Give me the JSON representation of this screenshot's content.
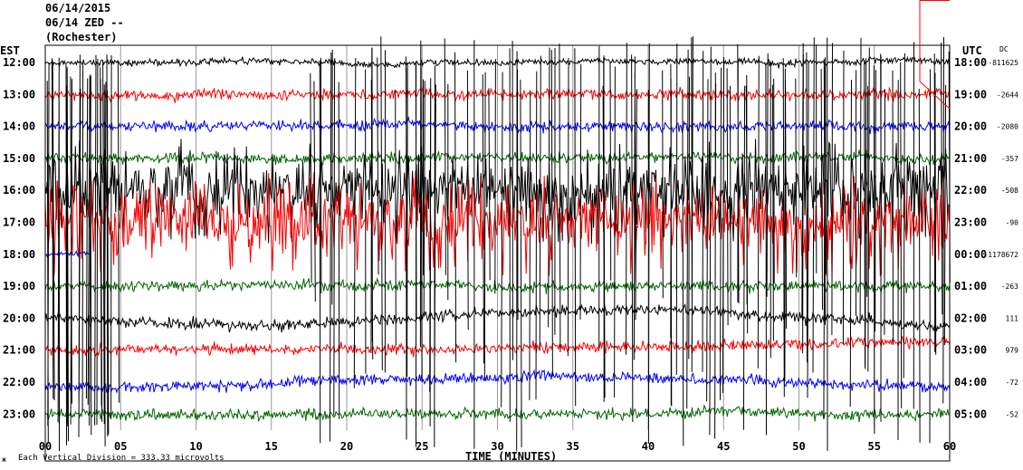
{
  "header": {
    "line1": "06/14/2015",
    "line2": "06/14 ZED --",
    "line3": "(Rochester)"
  },
  "footer": {
    "icon_glyph": "ж",
    "scale_note": "Each Vertical Division = 333.33 microvolts"
  },
  "chart_data": {
    "type": "line",
    "title": "",
    "xlabel": "TIME (MINUTES)",
    "ylabel_left": "EST",
    "ylabel_right": "UTC",
    "dc_label": "DC",
    "xlim": [
      0,
      60
    ],
    "x_ticks": [
      "00",
      "05",
      "10",
      "15",
      "20",
      "25",
      "30",
      "35",
      "40",
      "45",
      "50",
      "55",
      "60"
    ],
    "grid": "vertical lines every 5 minutes",
    "rows": [
      {
        "est": "12:00",
        "utc": "18:00",
        "dc": "-811625",
        "color": "#000000"
      },
      {
        "est": "13:00",
        "utc": "19:00",
        "dc": "-2644",
        "color": "#ff0000"
      },
      {
        "est": "14:00",
        "utc": "20:00",
        "dc": "-2080",
        "color": "#0000ff"
      },
      {
        "est": "15:00",
        "utc": "21:00",
        "dc": "-357",
        "color": "#006400"
      },
      {
        "est": "16:00",
        "utc": "22:00",
        "dc": "-508",
        "color": "#000000"
      },
      {
        "est": "17:00",
        "utc": "23:00",
        "dc": "-90",
        "color": "#ff0000"
      },
      {
        "est": "18:00",
        "utc": "00:00",
        "dc": "-1178672",
        "color": "#0000ff"
      },
      {
        "est": "19:00",
        "utc": "01:00",
        "dc": "-263",
        "color": "#006400"
      },
      {
        "est": "20:00",
        "utc": "02:00",
        "dc": "111",
        "color": "#000000"
      },
      {
        "est": "21:00",
        "utc": "03:00",
        "dc": "979",
        "color": "#ff0000"
      },
      {
        "est": "22:00",
        "utc": "04:00",
        "dc": "-72",
        "color": "#0000ff"
      },
      {
        "est": "23:00",
        "utc": "05:00",
        "dc": "-52",
        "color": "#006400"
      }
    ]
  }
}
